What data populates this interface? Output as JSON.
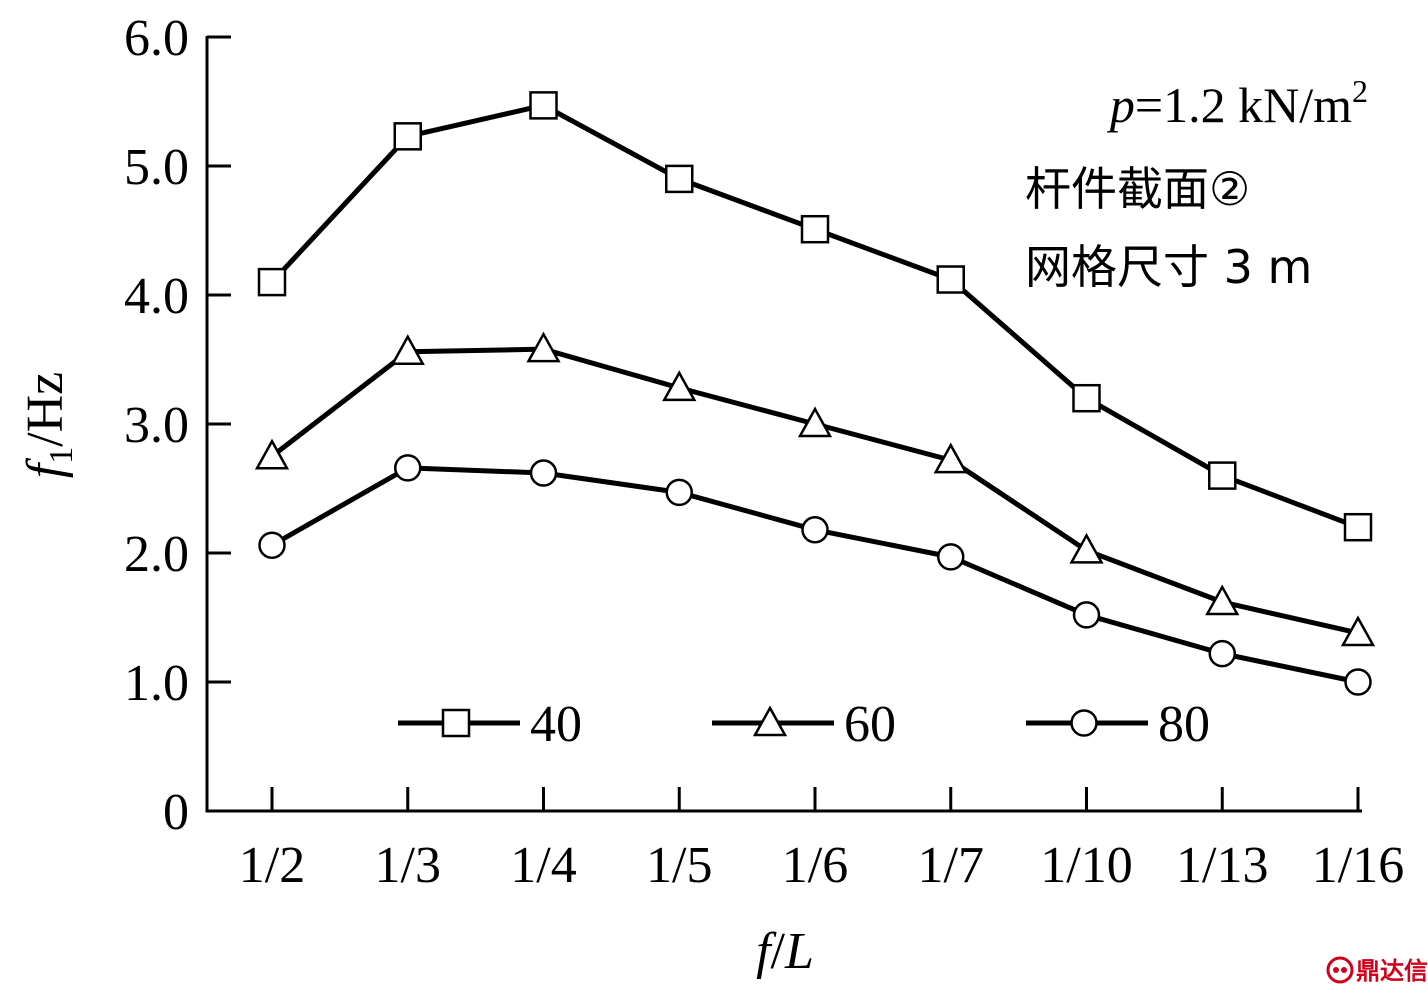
{
  "chart_data": {
    "type": "line",
    "categories": [
      "1/2",
      "1/3",
      "1/4",
      "1/5",
      "1/6",
      "1/7",
      "1/10",
      "1/13",
      "1/16"
    ],
    "series": [
      {
        "name": "40",
        "marker": "square",
        "values": [
          4.1,
          5.23,
          5.47,
          4.9,
          4.51,
          4.12,
          3.2,
          2.6,
          2.2
        ]
      },
      {
        "name": "60",
        "marker": "triangle",
        "values": [
          2.75,
          3.56,
          3.58,
          3.28,
          3.0,
          2.72,
          2.02,
          1.62,
          1.38
        ]
      },
      {
        "name": "80",
        "marker": "circle",
        "values": [
          2.06,
          2.66,
          2.62,
          2.47,
          2.18,
          1.97,
          1.52,
          1.22,
          1.0
        ]
      }
    ],
    "yticks": [
      "0",
      "1.0",
      "2.0",
      "3.0",
      "4.0",
      "5.0",
      "6.0"
    ],
    "ylim": [
      0,
      6
    ],
    "xlabel": {
      "main": "f",
      "sep": "/",
      "sub": "L"
    },
    "ylabel": {
      "main": "f",
      "subscript": "1",
      "unit": "/Hz"
    },
    "annotation": {
      "line1_italic": "p",
      "line1_rest": "=1.2 kN/m",
      "line1_sup": "2",
      "line2": "杆件截面②",
      "line3": "网格尺寸 3 m"
    },
    "legend_position": "bottom-inside",
    "grid": false,
    "colors": {
      "line": "#000000",
      "marker_fill": "#ffffff",
      "watermark": "#d0021b"
    }
  },
  "watermark": {
    "text": "鼎达信",
    "icon": "watermark-logo-icon"
  }
}
